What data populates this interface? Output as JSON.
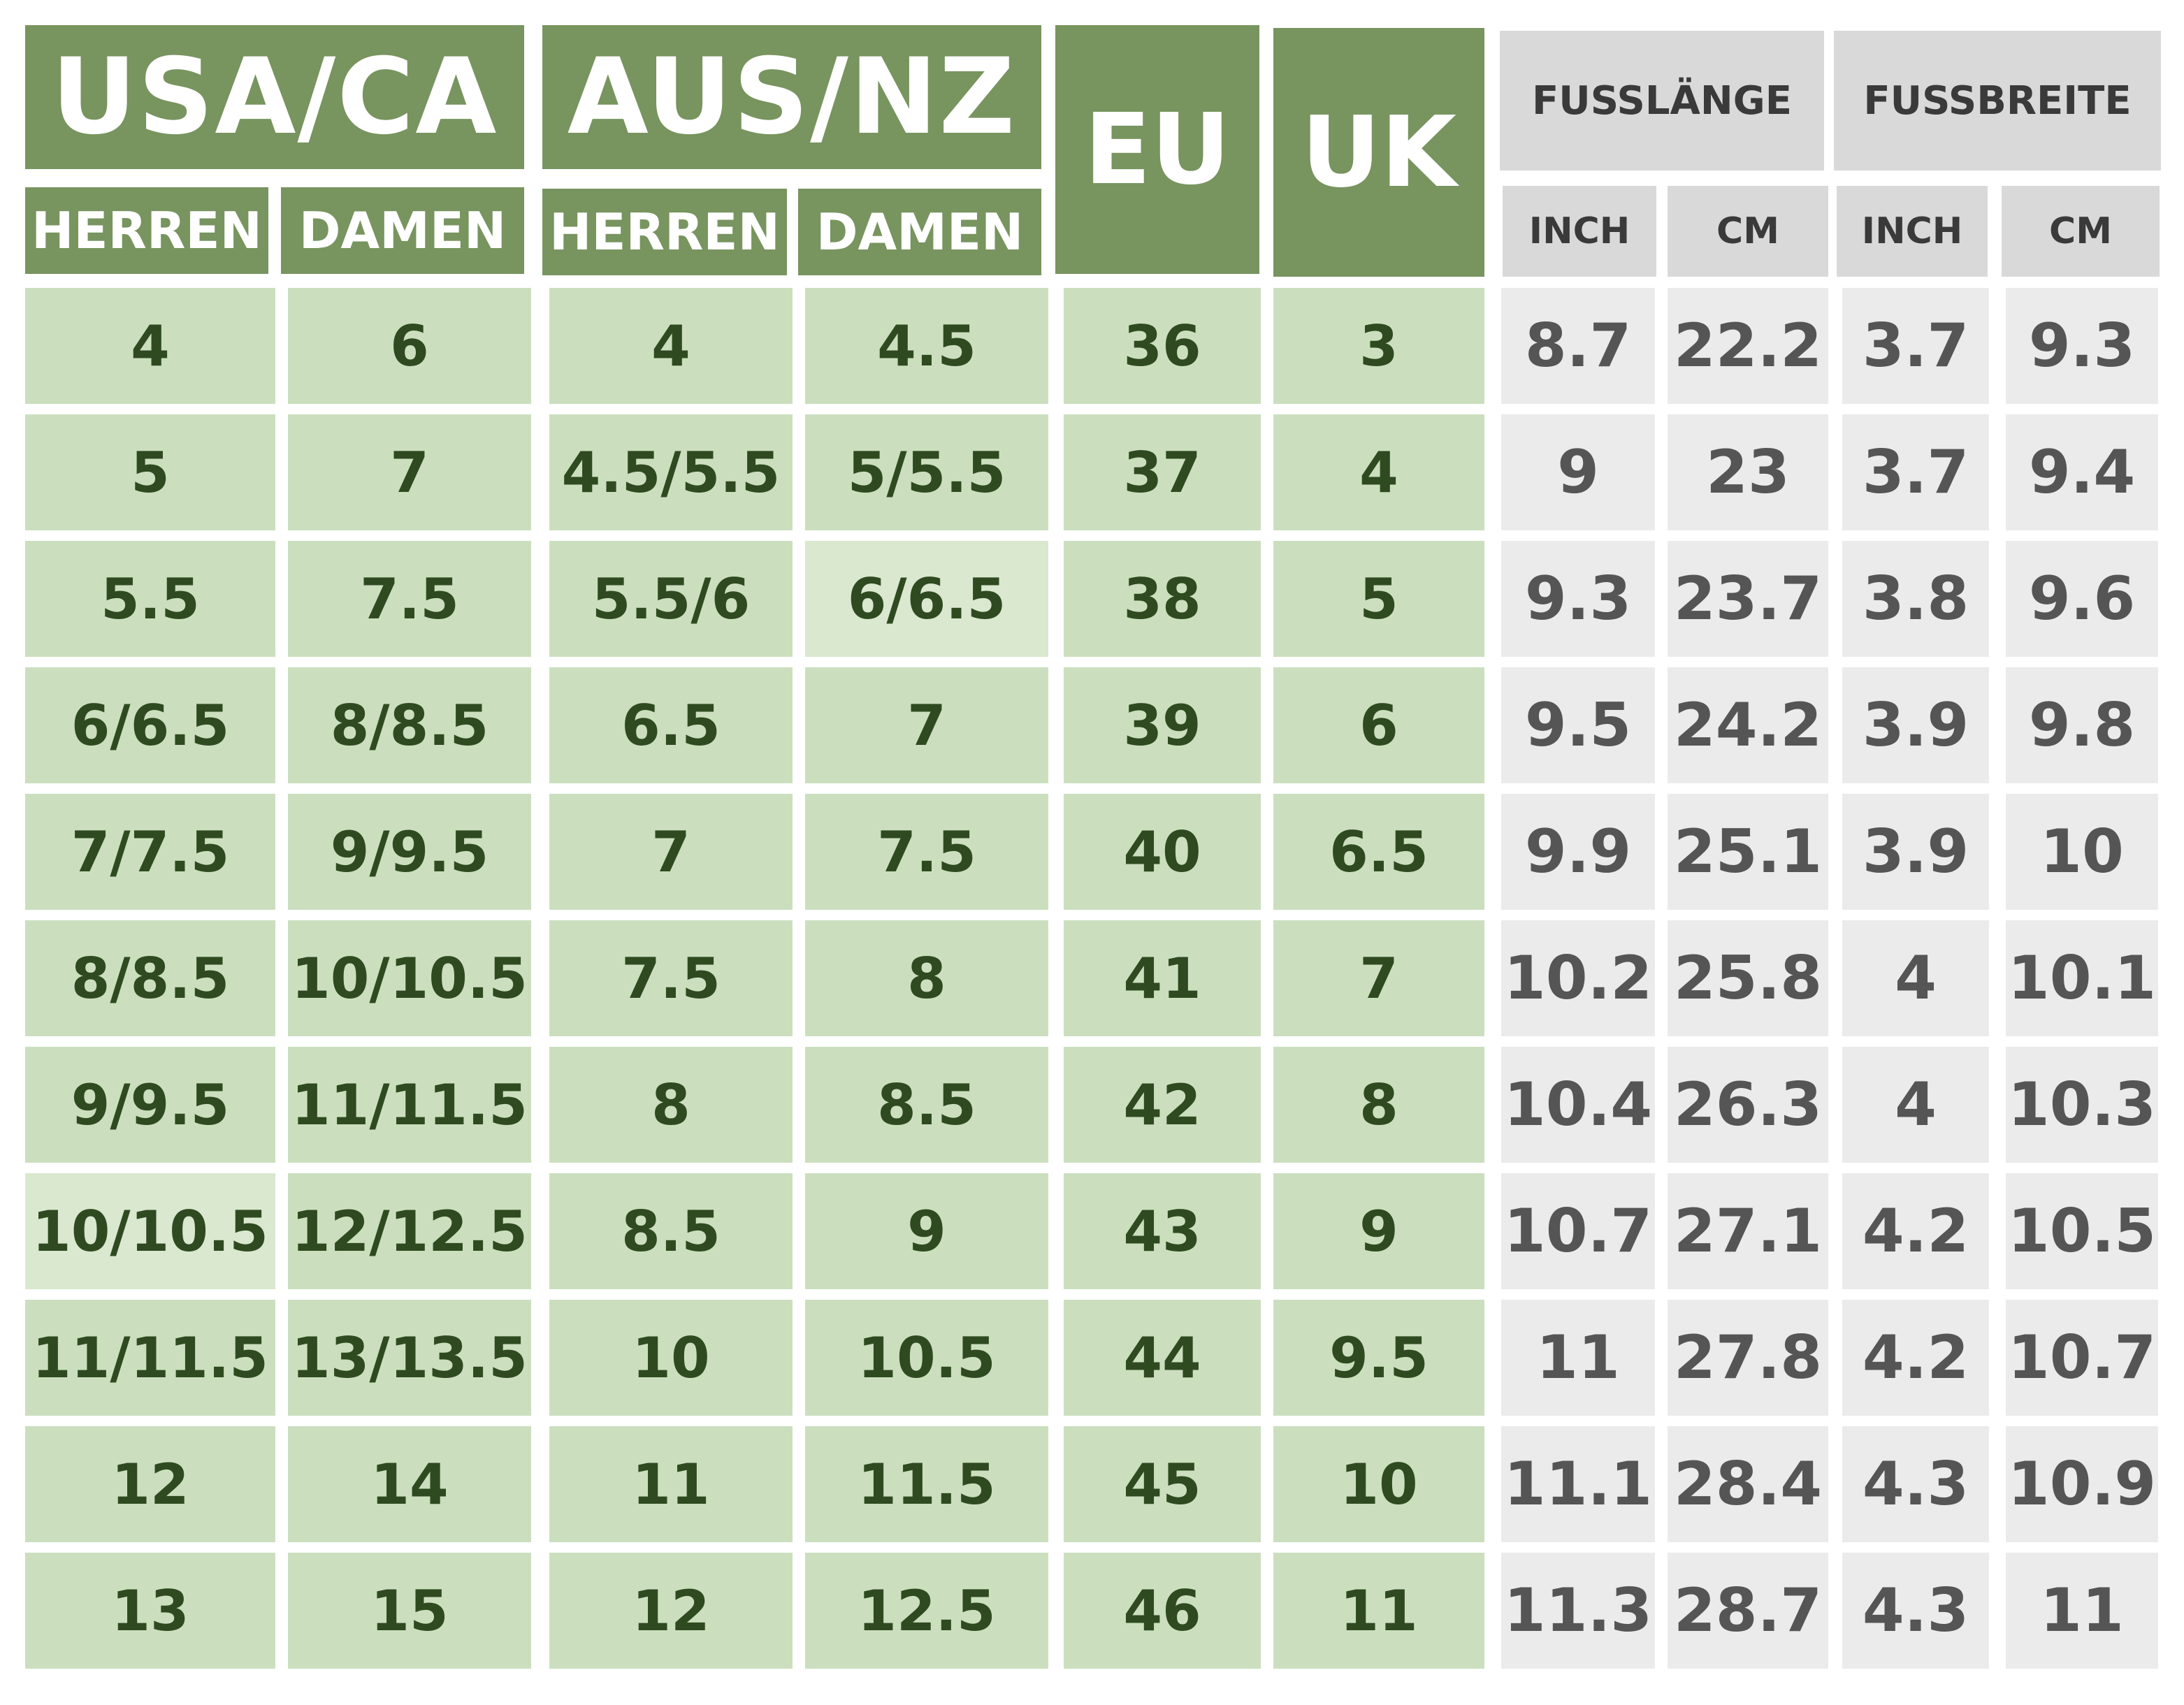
{
  "headers": {
    "usa_ca": "USA/CA",
    "aus_nz": "AUS/NZ",
    "eu": "EU",
    "uk": "UK",
    "fusslaenge": "FUSSLÄNGE",
    "fussbreite": "FUSSBREITE",
    "herren": "HERREN",
    "damen": "DAMEN",
    "inch": "INCH",
    "cm": "CM"
  },
  "colors": {
    "header_green": "#78945f",
    "cell_green": "#cbdfbf",
    "header_gray": "#d9d9d9",
    "cell_gray": "#ebebeb"
  },
  "rows": [
    [
      "4",
      "6",
      "4",
      "4.5",
      "36",
      "3",
      "8.7",
      "22.2",
      "3.7",
      "9.3"
    ],
    [
      "5",
      "7",
      "4.5/5.5",
      "5/5.5",
      "37",
      "4",
      "9",
      "23",
      "3.7",
      "9.4"
    ],
    [
      "5.5",
      "7.5",
      "5.5/6",
      "6/6.5",
      "38",
      "5",
      "9.3",
      "23.7",
      "3.8",
      "9.6"
    ],
    [
      "6/6.5",
      "8/8.5",
      "6.5",
      "7",
      "39",
      "6",
      "9.5",
      "24.2",
      "3.9",
      "9.8"
    ],
    [
      "7/7.5",
      "9/9.5",
      "7",
      "7.5",
      "40",
      "6.5",
      "9.9",
      "25.1",
      "3.9",
      "10"
    ],
    [
      "8/8.5",
      "10/10.5",
      "7.5",
      "8",
      "41",
      "7",
      "10.2",
      "25.8",
      "4",
      "10.1"
    ],
    [
      "9/9.5",
      "11/11.5",
      "8",
      "8.5",
      "42",
      "8",
      "10.4",
      "26.3",
      "4",
      "10.3"
    ],
    [
      "10/10.5",
      "12/12.5",
      "8.5",
      "9",
      "43",
      "9",
      "10.7",
      "27.1",
      "4.2",
      "10.5"
    ],
    [
      "11/11.5",
      "13/13.5",
      "10",
      "10.5",
      "44",
      "9.5",
      "11",
      "27.8",
      "4.2",
      "10.7"
    ],
    [
      "12",
      "14",
      "11",
      "11.5",
      "45",
      "10",
      "11.1",
      "28.4",
      "4.3",
      "10.9"
    ],
    [
      "13",
      "15",
      "12",
      "12.5",
      "46",
      "11",
      "11.3",
      "28.7",
      "4.3",
      "11"
    ]
  ]
}
